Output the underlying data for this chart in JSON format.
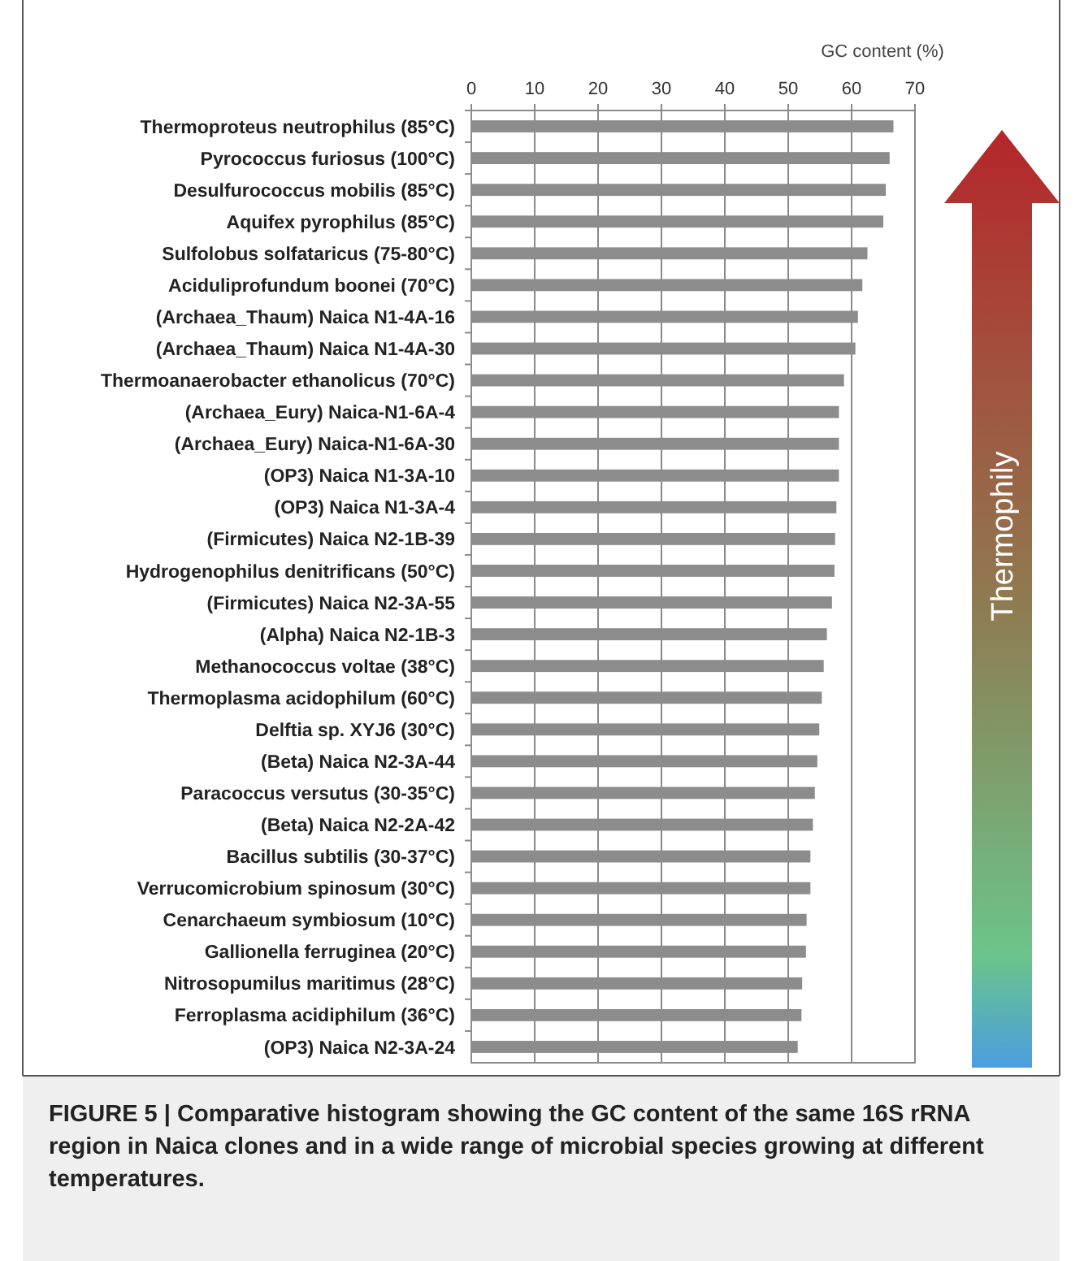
{
  "chart_data": {
    "type": "bar",
    "orientation": "horizontal",
    "xlabel": "GC content (%)",
    "categories": [
      "Thermoproteus neutrophilus (85°C)",
      "Pyrococcus furiosus (100°C)",
      "Desulfurococcus mobilis (85°C)",
      "Aquifex pyrophilus (85°C)",
      "Sulfolobus solfataricus (75-80°C)",
      "Aciduliprofundum boonei (70°C)",
      "(Archaea_Thaum) Naica N1-4A-16",
      "(Archaea_Thaum) Naica N1-4A-30",
      "Thermoanaerobacter ethanolicus (70°C)",
      "(Archaea_Eury) Naica-N1-6A-4",
      "(Archaea_Eury) Naica-N1-6A-30",
      "(OP3) Naica N1-3A-10",
      "(OP3) Naica N1-3A-4",
      "(Firmicutes) Naica N2-1B-39",
      "Hydrogenophilus denitrificans (50°C)",
      "(Firmicutes) Naica N2-3A-55",
      "(Alpha) Naica N2-1B-3",
      "Methanococcus voltae (38°C)",
      "Thermoplasma acidophilum (60°C)",
      "Delftia sp. XYJ6 (30°C)",
      "(Beta) Naica N2-3A-44",
      "Paracoccus versutus (30-35°C)",
      "(Beta) Naica N2-2A-42",
      "Bacillus subtilis (30-37°C)",
      "Verrucomicrobium spinosum (30°C)",
      "Cenarchaeum symbiosum (10°C)",
      "Gallionella ferruginea (20°C)",
      "Nitrosopumilus maritimus (28°C)",
      "Ferroplasma acidiphilum (36°C)",
      "(OP3) Naica N2-3A-24"
    ],
    "values": [
      66.6,
      66.0,
      65.4,
      65.0,
      62.5,
      61.7,
      61.0,
      60.6,
      58.8,
      58.0,
      58.0,
      58.0,
      57.6,
      57.4,
      57.3,
      56.9,
      56.1,
      55.6,
      55.3,
      54.9,
      54.6,
      54.2,
      53.9,
      53.5,
      53.5,
      52.9,
      52.8,
      52.2,
      52.1,
      51.5
    ],
    "color": "#8c8c8c",
    "xlim": [
      0,
      70
    ],
    "xticks": [
      0,
      10,
      20,
      30,
      40,
      50,
      60,
      70
    ],
    "grid": "x",
    "annotations": [
      "Thermophily",
      "FIGURE 5 | Comparative histogram showing the GC content of the same 16S rRNA region in Naica clones and in a wide range of microbial species growing at different temperatures."
    ]
  }
}
